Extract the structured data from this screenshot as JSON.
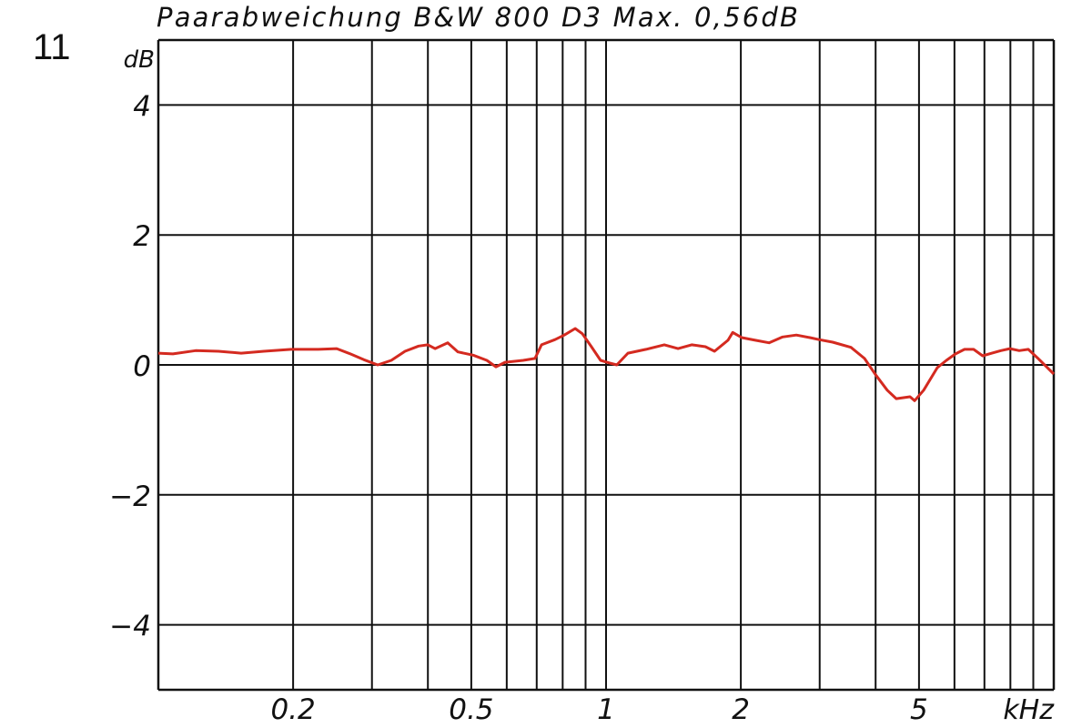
{
  "figure_number": "11",
  "chart_data": {
    "type": "line",
    "title": "Paarabweichung B&W 800 D3 Max. 0,56dB",
    "ylabel": "dB",
    "xlabel": "kHz",
    "x_scale": "log",
    "xlim": [
      0.1,
      10
    ],
    "ylim": [
      -5,
      5
    ],
    "grid": true,
    "x_ticks": [
      0.2,
      0.5,
      1,
      2,
      5
    ],
    "x_tick_labels": [
      "0.2",
      "0.5",
      "1",
      "2",
      "5"
    ],
    "x_gridlines": [
      0.2,
      0.3,
      0.4,
      0.5,
      0.6,
      0.7,
      0.8,
      0.9,
      1,
      2,
      3,
      4,
      5,
      6,
      7,
      8,
      9
    ],
    "y_ticks": [
      4,
      2,
      0,
      -2,
      -4
    ],
    "y_tick_labels": [
      "4",
      "2",
      "0",
      "−2",
      "−4"
    ],
    "line_color": "#d42a20",
    "series": [
      {
        "x": [
          0.1,
          0.1078,
          0.1211,
          0.1362,
          0.1531,
          0.1721,
          0.1981,
          0.2278,
          0.2503,
          0.2685,
          0.2879,
          0.309,
          0.3314,
          0.3556,
          0.3813,
          0.3999,
          0.415,
          0.443,
          0.4667,
          0.5049,
          0.5416,
          0.5675,
          0.5948,
          0.653,
          0.6937,
          0.7175,
          0.7692,
          0.8067,
          0.8531,
          0.8851,
          0.9275,
          0.9725,
          1.019,
          1.057,
          1.119,
          1.228,
          1.349,
          1.448,
          1.553,
          1.667,
          1.747,
          1.872,
          1.918,
          2.009,
          2.154,
          2.312,
          2.479,
          2.661,
          2.853,
          2.99,
          3.207,
          3.524,
          3.778,
          3.998,
          4.247,
          4.448,
          4.773,
          4.889,
          5.121,
          5.496,
          5.757,
          6.031,
          6.318,
          6.62,
          6.934,
          7.273,
          7.619,
          7.981,
          8.37,
          8.77,
          9.187,
          9.632,
          10.0
        ],
        "y": [
          0.18,
          0.17,
          0.22,
          0.21,
          0.18,
          0.21,
          0.24,
          0.24,
          0.25,
          0.17,
          0.08,
          0.0,
          0.07,
          0.21,
          0.29,
          0.31,
          0.25,
          0.34,
          0.2,
          0.15,
          0.07,
          -0.03,
          0.04,
          0.07,
          0.1,
          0.31,
          0.39,
          0.46,
          0.56,
          0.48,
          0.28,
          0.07,
          0.03,
          0.0,
          0.18,
          0.24,
          0.31,
          0.25,
          0.31,
          0.28,
          0.21,
          0.38,
          0.5,
          0.42,
          0.38,
          0.34,
          0.43,
          0.46,
          0.42,
          0.39,
          0.35,
          0.27,
          0.1,
          -0.15,
          -0.39,
          -0.52,
          -0.49,
          -0.55,
          -0.39,
          -0.04,
          0.07,
          0.17,
          0.24,
          0.24,
          0.14,
          0.18,
          0.22,
          0.25,
          0.22,
          0.24,
          0.11,
          -0.03,
          -0.14
        ]
      }
    ]
  }
}
